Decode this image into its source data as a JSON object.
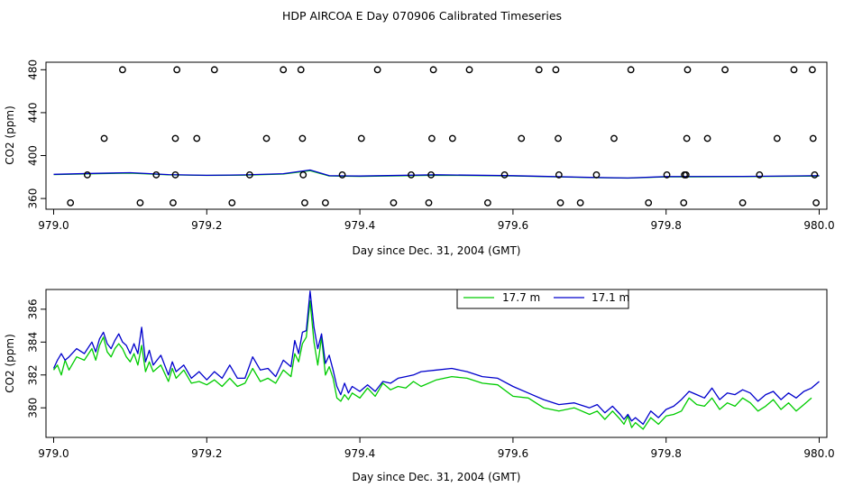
{
  "title": "HDP AIRCOA E  Day 070906  Calibrated Timeseries",
  "colors": {
    "green": "#00cc00",
    "blue": "#0000cc",
    "points": "#000000"
  },
  "chart_data": [
    {
      "type": "scatter",
      "xlabel": "Day since Dec. 31, 2004 (GMT)",
      "ylabel": "CO2 (ppm)",
      "xlim": [
        978.99,
        980.01
      ],
      "ylim": [
        350,
        487
      ],
      "xticks": [
        "979.0",
        "979.2",
        "979.4",
        "979.6",
        "979.8",
        "980.0"
      ],
      "yticks": [
        "360",
        "400",
        "440",
        "480"
      ],
      "x_tick_values": [
        979.0,
        979.2,
        979.4,
        979.6,
        979.8,
        980.0
      ],
      "y_tick_values": [
        360,
        400,
        440,
        480
      ],
      "points": [
        {
          "x": 979.09,
          "y": 480
        },
        {
          "x": 979.161,
          "y": 480
        },
        {
          "x": 979.21,
          "y": 480
        },
        {
          "x": 979.3,
          "y": 480
        },
        {
          "x": 979.323,
          "y": 480
        },
        {
          "x": 979.423,
          "y": 480
        },
        {
          "x": 979.496,
          "y": 480
        },
        {
          "x": 979.543,
          "y": 480
        },
        {
          "x": 979.634,
          "y": 480
        },
        {
          "x": 979.656,
          "y": 480
        },
        {
          "x": 979.754,
          "y": 480
        },
        {
          "x": 979.828,
          "y": 480
        },
        {
          "x": 979.877,
          "y": 480
        },
        {
          "x": 979.967,
          "y": 480
        },
        {
          "x": 979.991,
          "y": 480
        },
        {
          "x": 979.066,
          "y": 416
        },
        {
          "x": 979.159,
          "y": 416
        },
        {
          "x": 979.187,
          "y": 416
        },
        {
          "x": 979.278,
          "y": 416
        },
        {
          "x": 979.325,
          "y": 416
        },
        {
          "x": 979.402,
          "y": 416
        },
        {
          "x": 979.494,
          "y": 416
        },
        {
          "x": 979.521,
          "y": 416
        },
        {
          "x": 979.611,
          "y": 416
        },
        {
          "x": 979.659,
          "y": 416
        },
        {
          "x": 979.732,
          "y": 416
        },
        {
          "x": 979.827,
          "y": 416
        },
        {
          "x": 979.854,
          "y": 416
        },
        {
          "x": 979.945,
          "y": 416
        },
        {
          "x": 979.992,
          "y": 416
        },
        {
          "x": 979.044,
          "y": 382
        },
        {
          "x": 979.134,
          "y": 382
        },
        {
          "x": 979.159,
          "y": 382
        },
        {
          "x": 979.256,
          "y": 382
        },
        {
          "x": 979.326,
          "y": 382
        },
        {
          "x": 979.377,
          "y": 382
        },
        {
          "x": 979.467,
          "y": 382
        },
        {
          "x": 979.493,
          "y": 382
        },
        {
          "x": 979.589,
          "y": 382
        },
        {
          "x": 979.66,
          "y": 382
        },
        {
          "x": 979.709,
          "y": 382
        },
        {
          "x": 979.801,
          "y": 382
        },
        {
          "x": 979.824,
          "y": 382
        },
        {
          "x": 979.826,
          "y": 382
        },
        {
          "x": 979.922,
          "y": 382
        },
        {
          "x": 979.994,
          "y": 382
        },
        {
          "x": 979.022,
          "y": 356
        },
        {
          "x": 979.113,
          "y": 356
        },
        {
          "x": 979.156,
          "y": 356
        },
        {
          "x": 979.233,
          "y": 356
        },
        {
          "x": 979.328,
          "y": 356
        },
        {
          "x": 979.355,
          "y": 356
        },
        {
          "x": 979.444,
          "y": 356
        },
        {
          "x": 979.49,
          "y": 356
        },
        {
          "x": 979.567,
          "y": 356
        },
        {
          "x": 979.662,
          "y": 356
        },
        {
          "x": 979.688,
          "y": 356
        },
        {
          "x": 979.777,
          "y": 356
        },
        {
          "x": 979.823,
          "y": 356
        },
        {
          "x": 979.9,
          "y": 356
        },
        {
          "x": 979.996,
          "y": 356
        }
      ],
      "series": [
        {
          "color": "green",
          "x": [
            979.0,
            979.05,
            979.1,
            979.15,
            979.2,
            979.25,
            979.3,
            979.335,
            979.36,
            979.4,
            979.5,
            979.6,
            979.7,
            979.75,
            979.8,
            979.9,
            980.0
          ],
          "y": [
            382.3,
            383.0,
            383.6,
            382.0,
            381.5,
            381.8,
            382.8,
            386.0,
            381.0,
            380.6,
            381.7,
            381.0,
            379.5,
            379.0,
            380.2,
            380.3,
            380.9
          ]
        },
        {
          "color": "blue",
          "x": [
            979.0,
            979.05,
            979.1,
            979.15,
            979.2,
            979.25,
            979.3,
            979.335,
            979.36,
            979.4,
            979.5,
            979.6,
            979.7,
            979.75,
            979.8,
            979.9,
            980.0
          ],
          "y": [
            382.5,
            383.4,
            384.0,
            382.3,
            381.6,
            382.0,
            383.1,
            386.6,
            381.3,
            380.9,
            382.1,
            381.3,
            379.7,
            379.1,
            380.4,
            380.6,
            381.3
          ]
        }
      ]
    },
    {
      "type": "line",
      "xlabel": "Day since Dec. 31, 2004 (GMT)",
      "ylabel": "CO2 (ppm)",
      "xlim": [
        978.99,
        980.01
      ],
      "ylim": [
        378.2,
        387.2
      ],
      "xticks": [
        "979.0",
        "979.2",
        "979.4",
        "979.6",
        "979.8",
        "980.0"
      ],
      "yticks": [
        "380",
        "382",
        "384",
        "386"
      ],
      "x_tick_values": [
        979.0,
        979.2,
        979.4,
        979.6,
        979.8,
        980.0
      ],
      "y_tick_values": [
        380,
        382,
        384,
        386
      ],
      "legend": {
        "position": "top-center"
      },
      "series": [
        {
          "name": "17.7 m",
          "color": "green",
          "x": [
            979.0,
            979.005,
            979.01,
            979.015,
            979.02,
            979.03,
            979.04,
            979.05,
            979.055,
            979.06,
            979.065,
            979.07,
            979.075,
            979.08,
            979.085,
            979.09,
            979.095,
            979.1,
            979.105,
            979.11,
            979.115,
            979.12,
            979.125,
            979.13,
            979.14,
            979.15,
            979.155,
            979.16,
            979.17,
            979.18,
            979.19,
            979.2,
            979.21,
            979.22,
            979.23,
            979.24,
            979.25,
            979.26,
            979.27,
            979.28,
            979.29,
            979.3,
            979.31,
            979.315,
            979.32,
            979.325,
            979.33,
            979.335,
            979.34,
            979.345,
            979.35,
            979.355,
            979.36,
            979.365,
            979.37,
            979.375,
            979.38,
            979.385,
            979.39,
            979.4,
            979.41,
            979.42,
            979.43,
            979.44,
            979.45,
            979.46,
            979.47,
            979.48,
            979.5,
            979.52,
            979.54,
            979.56,
            979.58,
            979.6,
            979.62,
            979.64,
            979.66,
            979.68,
            979.7,
            979.71,
            979.72,
            979.73,
            979.74,
            979.745,
            979.75,
            979.755,
            979.76,
            979.77,
            979.78,
            979.79,
            979.8,
            979.81,
            979.82,
            979.83,
            979.84,
            979.85,
            979.86,
            979.87,
            979.88,
            979.89,
            979.9,
            979.91,
            979.92,
            979.93,
            979.94,
            979.95,
            979.96,
            979.97,
            979.98,
            979.99
          ],
          "y": [
            382.3,
            382.6,
            382.0,
            382.9,
            382.3,
            383.1,
            382.9,
            383.6,
            382.9,
            383.8,
            384.3,
            383.4,
            383.1,
            383.6,
            383.9,
            383.6,
            383.1,
            382.8,
            383.3,
            382.6,
            383.8,
            382.2,
            382.8,
            382.2,
            382.6,
            381.6,
            382.4,
            381.8,
            382.3,
            381.5,
            381.6,
            381.4,
            381.7,
            381.3,
            381.8,
            381.3,
            381.5,
            382.4,
            381.6,
            381.8,
            381.5,
            382.3,
            381.9,
            383.3,
            382.8,
            383.9,
            384.3,
            386.5,
            384.0,
            382.6,
            384.3,
            382.0,
            382.5,
            381.8,
            380.6,
            380.4,
            380.8,
            380.5,
            380.9,
            380.6,
            381.2,
            380.7,
            381.5,
            381.1,
            381.3,
            381.2,
            381.6,
            381.3,
            381.7,
            381.9,
            381.8,
            381.5,
            381.4,
            380.7,
            380.6,
            380.0,
            379.8,
            380.0,
            379.6,
            379.8,
            379.3,
            379.8,
            379.3,
            379.0,
            379.5,
            378.8,
            379.1,
            378.7,
            379.4,
            379.0,
            379.5,
            379.6,
            379.8,
            380.6,
            380.2,
            380.1,
            380.6,
            379.9,
            380.3,
            380.1,
            380.6,
            380.3,
            379.8,
            380.1,
            380.5,
            379.9,
            380.3,
            379.8,
            380.2,
            380.6
          ]
        },
        {
          "name": "17.1 m",
          "color": "blue",
          "x": [
            979.0,
            979.005,
            979.01,
            979.015,
            979.02,
            979.03,
            979.04,
            979.05,
            979.055,
            979.06,
            979.065,
            979.07,
            979.075,
            979.08,
            979.085,
            979.09,
            979.095,
            979.1,
            979.105,
            979.11,
            979.115,
            979.12,
            979.125,
            979.13,
            979.14,
            979.15,
            979.155,
            979.16,
            979.17,
            979.18,
            979.19,
            979.2,
            979.21,
            979.22,
            979.23,
            979.24,
            979.25,
            979.26,
            979.27,
            979.28,
            979.29,
            979.3,
            979.31,
            979.315,
            979.32,
            979.325,
            979.33,
            979.335,
            979.34,
            979.345,
            979.35,
            979.355,
            979.36,
            979.365,
            979.37,
            979.375,
            979.38,
            979.385,
            979.39,
            979.4,
            979.41,
            979.42,
            979.43,
            979.44,
            979.45,
            979.46,
            979.47,
            979.48,
            979.5,
            979.52,
            979.54,
            979.56,
            979.58,
            979.6,
            979.62,
            979.64,
            979.66,
            979.68,
            979.7,
            979.71,
            979.72,
            979.73,
            979.74,
            979.745,
            979.75,
            979.755,
            979.76,
            979.77,
            979.78,
            979.79,
            979.8,
            979.81,
            979.82,
            979.83,
            979.84,
            979.85,
            979.86,
            979.87,
            979.88,
            979.89,
            979.9,
            979.91,
            979.92,
            979.93,
            979.94,
            979.95,
            979.96,
            979.97,
            979.98,
            979.99,
            980.0
          ],
          "y": [
            382.4,
            382.9,
            383.3,
            382.9,
            383.1,
            383.6,
            383.3,
            384.0,
            383.4,
            384.2,
            384.6,
            383.9,
            383.6,
            384.1,
            384.5,
            384.0,
            383.8,
            383.3,
            383.9,
            383.3,
            384.9,
            382.8,
            383.5,
            382.6,
            383.2,
            382.0,
            382.8,
            382.2,
            382.6,
            381.8,
            382.2,
            381.7,
            382.2,
            381.8,
            382.6,
            381.8,
            381.8,
            383.1,
            382.3,
            382.4,
            381.9,
            382.9,
            382.5,
            384.1,
            383.3,
            384.6,
            384.7,
            387.1,
            384.9,
            383.6,
            384.5,
            382.7,
            383.2,
            382.3,
            381.3,
            380.8,
            381.5,
            380.9,
            381.3,
            381.0,
            381.4,
            381.0,
            381.6,
            381.5,
            381.8,
            381.9,
            382.0,
            382.2,
            382.3,
            382.4,
            382.2,
            381.9,
            381.8,
            381.3,
            380.9,
            380.5,
            380.2,
            380.3,
            380.0,
            380.2,
            379.7,
            380.1,
            379.6,
            379.3,
            379.6,
            379.2,
            379.4,
            379.0,
            379.8,
            379.4,
            379.9,
            380.1,
            380.5,
            381.0,
            380.8,
            380.6,
            381.2,
            380.5,
            380.9,
            380.8,
            381.1,
            380.9,
            380.4,
            380.8,
            381.0,
            380.5,
            380.9,
            380.6,
            381.0,
            381.2,
            381.6
          ]
        }
      ]
    }
  ]
}
